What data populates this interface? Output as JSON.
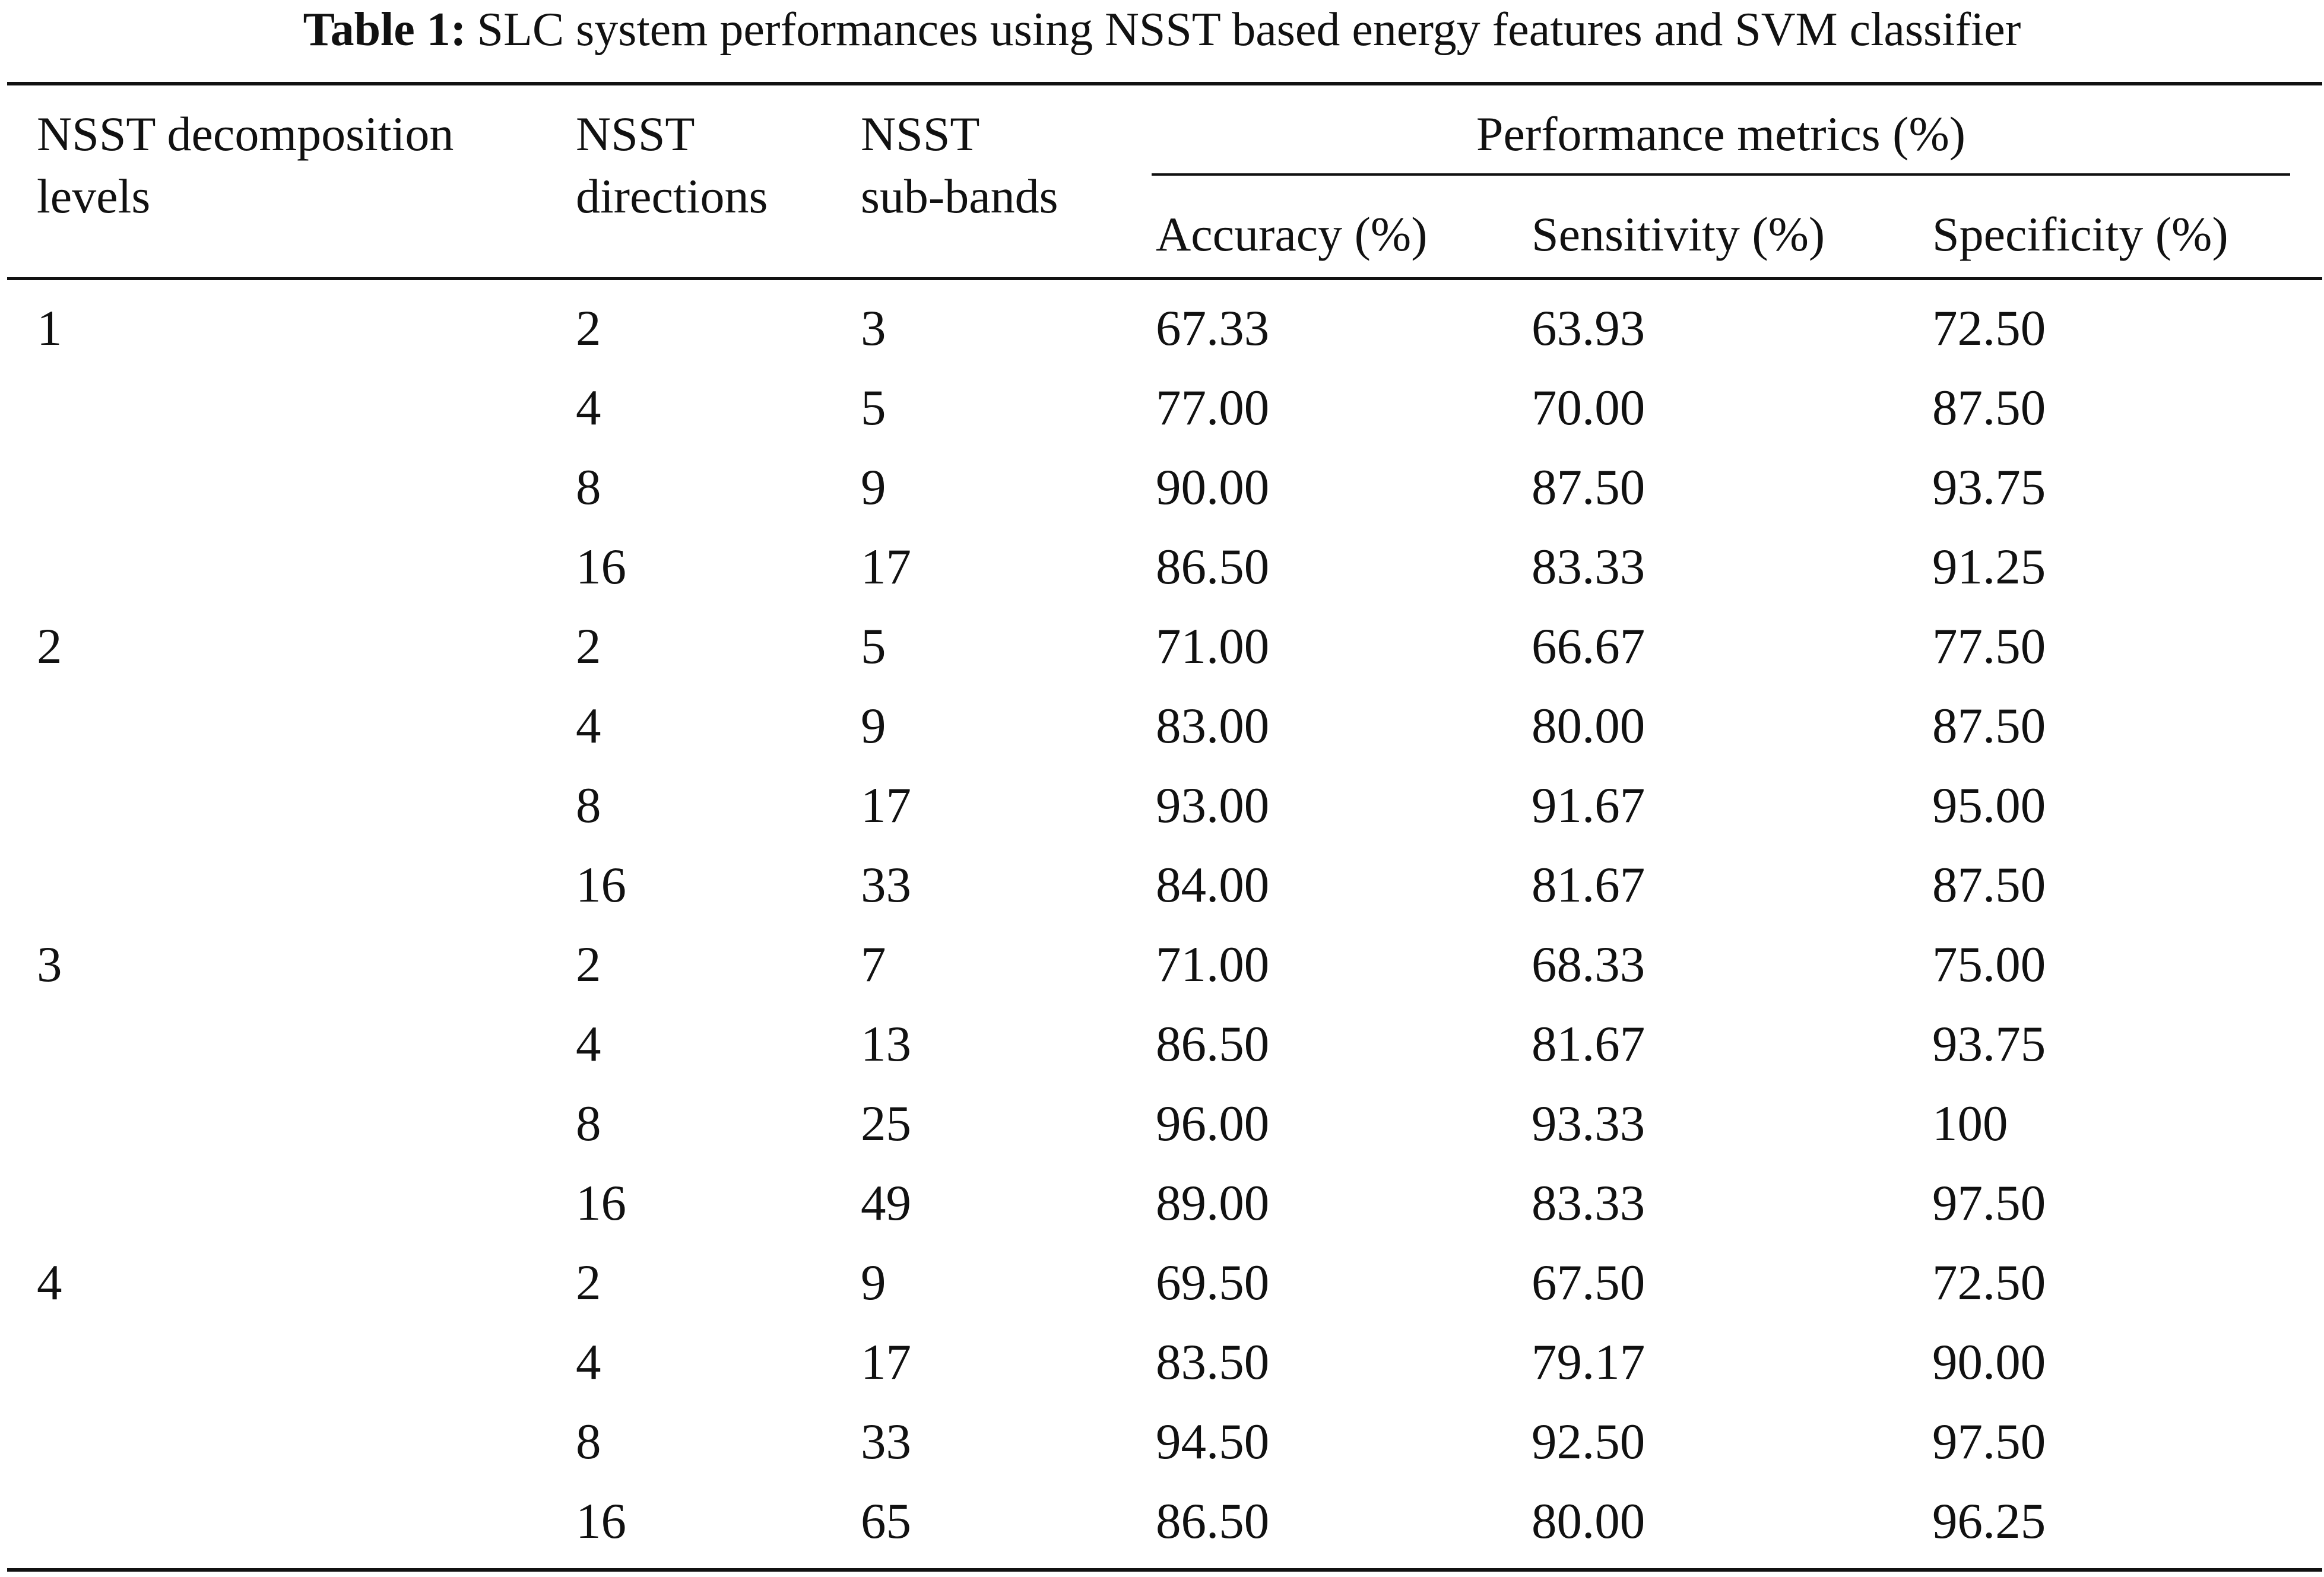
{
  "caption": {
    "label": "Table 1:",
    "text": "SLC system performances using NSST based energy features and SVM classifier"
  },
  "header": {
    "levels_line1": "NSST decomposition",
    "levels_line2": "levels",
    "directions_line1": "NSST",
    "directions_line2": "directions",
    "subbands_line1": "NSST",
    "subbands_line2": "sub-bands",
    "group": "Performance metrics (%)",
    "accuracy": "Accuracy (%)",
    "sensitivity": "Sensitivity (%)",
    "specificity": "Specificity (%)"
  },
  "rows": [
    {
      "level": "1",
      "directions": "2",
      "subbands": "3",
      "accuracy": "67.33",
      "sensitivity": "63.93",
      "specificity": "72.50"
    },
    {
      "level": "",
      "directions": "4",
      "subbands": "5",
      "accuracy": "77.00",
      "sensitivity": "70.00",
      "specificity": "87.50"
    },
    {
      "level": "",
      "directions": "8",
      "subbands": "9",
      "accuracy": "90.00",
      "sensitivity": "87.50",
      "specificity": "93.75"
    },
    {
      "level": "",
      "directions": "16",
      "subbands": "17",
      "accuracy": "86.50",
      "sensitivity": "83.33",
      "specificity": "91.25"
    },
    {
      "level": "2",
      "directions": "2",
      "subbands": "5",
      "accuracy": "71.00",
      "sensitivity": "66.67",
      "specificity": "77.50"
    },
    {
      "level": "",
      "directions": "4",
      "subbands": "9",
      "accuracy": "83.00",
      "sensitivity": "80.00",
      "specificity": "87.50"
    },
    {
      "level": "",
      "directions": "8",
      "subbands": "17",
      "accuracy": "93.00",
      "sensitivity": "91.67",
      "specificity": "95.00"
    },
    {
      "level": "",
      "directions": "16",
      "subbands": "33",
      "accuracy": "84.00",
      "sensitivity": "81.67",
      "specificity": "87.50"
    },
    {
      "level": "3",
      "directions": "2",
      "subbands": "7",
      "accuracy": "71.00",
      "sensitivity": "68.33",
      "specificity": "75.00"
    },
    {
      "level": "",
      "directions": "4",
      "subbands": "13",
      "accuracy": "86.50",
      "sensitivity": "81.67",
      "specificity": "93.75"
    },
    {
      "level": "",
      "directions": "8",
      "subbands": "25",
      "accuracy": "96.00",
      "sensitivity": "93.33",
      "specificity": "100"
    },
    {
      "level": "",
      "directions": "16",
      "subbands": "49",
      "accuracy": "89.00",
      "sensitivity": "83.33",
      "specificity": "97.50"
    },
    {
      "level": "4",
      "directions": "2",
      "subbands": "9",
      "accuracy": "69.50",
      "sensitivity": "67.50",
      "specificity": "72.50"
    },
    {
      "level": "",
      "directions": "4",
      "subbands": "17",
      "accuracy": "83.50",
      "sensitivity": "79.17",
      "specificity": "90.00"
    },
    {
      "level": "",
      "directions": "8",
      "subbands": "33",
      "accuracy": "94.50",
      "sensitivity": "92.50",
      "specificity": "97.50"
    },
    {
      "level": "",
      "directions": "16",
      "subbands": "65",
      "accuracy": "86.50",
      "sensitivity": "80.00",
      "specificity": "96.25"
    }
  ]
}
